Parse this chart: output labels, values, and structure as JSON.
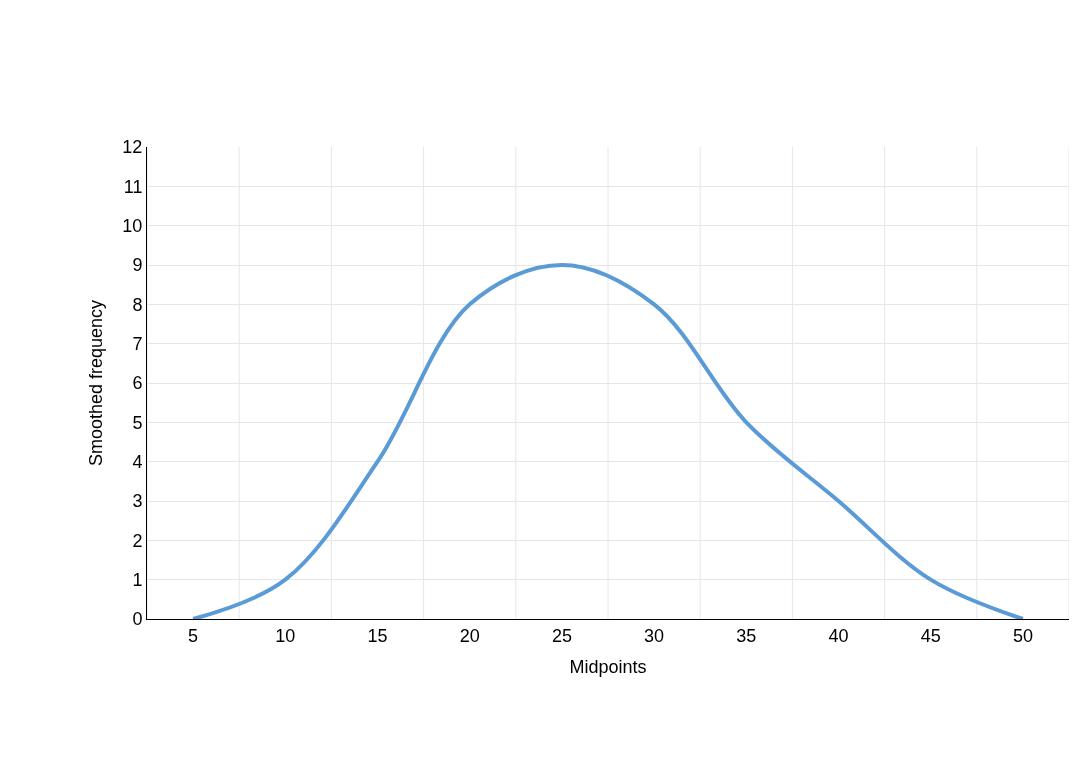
{
  "chart_data": {
    "type": "line",
    "xlabel": "Midpoints",
    "ylabel": "Smoothed frequency",
    "categories": [
      "5",
      "10",
      "15",
      "20",
      "25",
      "30",
      "35",
      "40",
      "45",
      "50"
    ],
    "series": [
      {
        "color": "#5b9bd5",
        "values": [
          0,
          1,
          4,
          8,
          9,
          8,
          5,
          3,
          1,
          0
        ]
      }
    ],
    "ylim": [
      0,
      12
    ],
    "yticks": [
      0,
      1,
      2,
      3,
      4,
      5,
      6,
      7,
      8,
      9,
      10,
      11,
      12
    ],
    "grid": true,
    "marker": "none",
    "line_style": "solid",
    "legend": false
  }
}
